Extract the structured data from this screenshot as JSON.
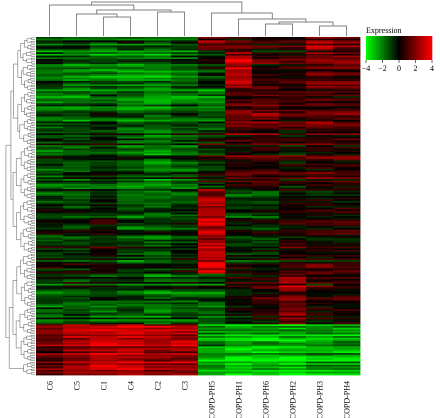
{
  "chart_data": {
    "type": "heatmap",
    "title": "",
    "legend": {
      "title": "Expression",
      "min": -4,
      "max": 4,
      "ticks": [
        -4,
        -2,
        0,
        2,
        4
      ],
      "tick_labels": [
        "−4",
        "−2",
        "0",
        "2",
        "4"
      ],
      "low_color": "#00ff00",
      "mid_color": "#000000",
      "high_color": "#ff0000",
      "placement": "top-right"
    },
    "columns": [
      "C6",
      "C5",
      "C1",
      "C4",
      "C2",
      "C3",
      "COPD-PH5",
      "COPD-PH1",
      "COPD-PH6",
      "COPD-PH2",
      "COPD-PH3",
      "COPD-PH4"
    ],
    "row_count": 200,
    "grid": false,
    "row_dendrogram": true,
    "column_dendrogram": true,
    "row_blocks": [
      {
        "rows": [
          0,
          8
        ],
        "values": [
          -1.0,
          -0.8,
          -1.2,
          -1.0,
          -1.5,
          -1.0,
          1.5,
          1.0,
          0.5,
          0.5,
          2.0,
          1.5
        ]
      },
      {
        "rows": [
          8,
          30
        ],
        "values": [
          -1.5,
          -1.8,
          -2.0,
          -2.0,
          -2.0,
          -1.5,
          -0.5,
          2.5,
          0.5,
          0.5,
          1.5,
          1.5
        ]
      },
      {
        "rows": [
          30,
          55
        ],
        "values": [
          -1.5,
          -1.5,
          -1.0,
          -1.5,
          -2.0,
          -1.5,
          -1.5,
          1.5,
          1.5,
          1.0,
          1.5,
          1.0
        ]
      },
      {
        "rows": [
          55,
          90
        ],
        "values": [
          -1.0,
          -1.0,
          -0.5,
          -1.0,
          -1.5,
          -1.0,
          0.0,
          1.0,
          1.0,
          0.5,
          1.0,
          1.0
        ]
      },
      {
        "rows": [
          90,
          140
        ],
        "values": [
          -0.5,
          -0.5,
          0.0,
          -1.0,
          -1.0,
          -0.5,
          3.0,
          -0.5,
          -0.5,
          0.5,
          0.5,
          0.5
        ]
      },
      {
        "rows": [
          140,
          170
        ],
        "values": [
          -1.0,
          -1.0,
          -1.0,
          -1.0,
          -1.5,
          -1.0,
          -1.0,
          0.0,
          0.5,
          2.0,
          0.5,
          0.5
        ]
      },
      {
        "rows": [
          170,
          200
        ],
        "values": [
          1.5,
          2.5,
          3.0,
          3.0,
          2.5,
          2.5,
          -2.5,
          -3.0,
          -3.0,
          -3.0,
          -2.5,
          -2.5
        ]
      }
    ]
  }
}
